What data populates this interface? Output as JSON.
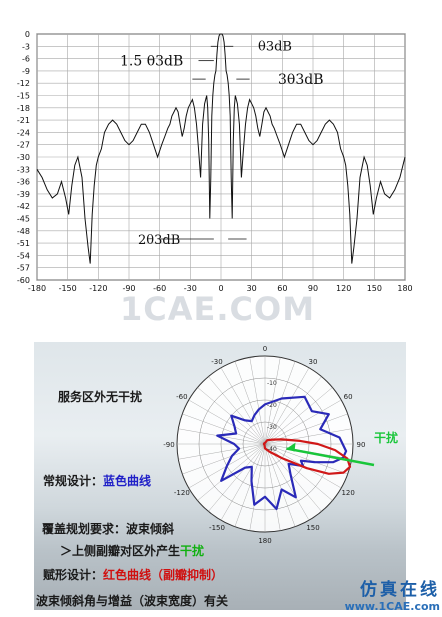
{
  "chart_data": [
    {
      "type": "line",
      "xlim": [
        -180,
        180
      ],
      "ylim": [
        -60,
        0
      ],
      "grid": true,
      "x_ticks": [
        "-180",
        "-150",
        "-120",
        "-90",
        "-60",
        "-30",
        "0",
        "30",
        "60",
        "90",
        "120",
        "150",
        "180"
      ],
      "y_ticks": [
        "0",
        "-3",
        "-6",
        "-9",
        "-12",
        "-15",
        "-18",
        "-21",
        "-24",
        "-27",
        "-30",
        "-33",
        "-36",
        "-39",
        "-42",
        "-45",
        "-48",
        "-51",
        "-54",
        "-57",
        "-60"
      ],
      "series": [
        {
          "x": [
            -180,
            -175,
            -170,
            -165,
            -160,
            -156,
            -152,
            -149,
            -146,
            -143,
            -140,
            -136,
            -133,
            -130,
            -128,
            -126,
            -124,
            -122,
            -120,
            -117,
            -114,
            -110,
            -106,
            -102,
            -98,
            -94,
            -90,
            -86,
            -82,
            -78,
            -74,
            -70,
            -66,
            -62,
            -58,
            -55,
            -52,
            -50,
            -48,
            -46,
            -44,
            -42,
            -40,
            -38,
            -36,
            -34,
            -32,
            -30,
            -28,
            -26,
            -24,
            -22,
            -20,
            -18,
            -16,
            -14,
            -13,
            -12,
            -11,
            -10,
            -9,
            -8,
            -7,
            -6,
            -5,
            -4,
            -3,
            -2,
            -1,
            0,
            1,
            2,
            3,
            4,
            5,
            6,
            7,
            8,
            9,
            10,
            11,
            12,
            13,
            14,
            16,
            18,
            20,
            22,
            24,
            26,
            28,
            30,
            32,
            34,
            36,
            38,
            40,
            42,
            44,
            46,
            48,
            50,
            52,
            55,
            58,
            62,
            66,
            70,
            74,
            78,
            82,
            86,
            90,
            94,
            98,
            102,
            106,
            110,
            114,
            117,
            120,
            122,
            124,
            126,
            128,
            130,
            133,
            136,
            140,
            143,
            146,
            149,
            152,
            156,
            160,
            165,
            170,
            175,
            180
          ],
          "y": [
            -33,
            -35,
            -38,
            -40,
            -39,
            -36,
            -40,
            -44,
            -37,
            -32,
            -30,
            -35,
            -45,
            -52,
            -56,
            -44,
            -37,
            -32,
            -30,
            -28,
            -24,
            -22,
            -21,
            -22,
            -24,
            -26,
            -27,
            -26,
            -24,
            -22,
            -22,
            -24,
            -27,
            -30,
            -27,
            -25,
            -23,
            -22,
            -20,
            -19,
            -18,
            -19,
            -22,
            -25,
            -23,
            -20,
            -18,
            -17,
            -16,
            -18,
            -22,
            -28,
            -35,
            -22,
            -17,
            -15,
            -18,
            -26,
            -45,
            -35,
            -20,
            -15,
            -12,
            -10,
            -9,
            -5,
            -2,
            -0.5,
            0,
            0,
            0,
            -0.5,
            -2,
            -5,
            -9,
            -10,
            -12,
            -15,
            -20,
            -35,
            -45,
            -26,
            -18,
            -15,
            -17,
            -22,
            -35,
            -28,
            -22,
            -18,
            -16,
            -17,
            -18,
            -20,
            -23,
            -25,
            -22,
            -19,
            -18,
            -19,
            -20,
            -22,
            -23,
            -25,
            -27,
            -30,
            -27,
            -24,
            -22,
            -22,
            -24,
            -26,
            -27,
            -26,
            -24,
            -22,
            -21,
            -22,
            -24,
            -28,
            -30,
            -32,
            -37,
            -44,
            -56,
            -52,
            -45,
            -35,
            -30,
            -32,
            -37,
            -44,
            -40,
            -36,
            -39,
            -40,
            -38,
            -35,
            -30
          ]
        }
      ],
      "annotations": {
        "beamwidth_3db": "θ3dB",
        "beamwidth_1_5": "1.5 θ3dB",
        "beamwidth_3": "3θ3dB",
        "beamwidth_2": "2θ3dB"
      }
    },
    {
      "type": "polar",
      "angle_labels": [
        "0",
        "30",
        "60",
        "90",
        "120",
        "150",
        "180",
        "-150",
        "-120",
        "-90",
        "-60",
        "-30"
      ],
      "radial_labels": [
        "-10",
        "-20",
        "-30",
        "-40"
      ],
      "series": [
        {
          "color": "#2a2ab8",
          "angles": [
            0,
            20,
            40,
            55,
            65,
            75,
            85,
            95,
            100,
            105,
            110,
            115,
            120,
            130,
            140,
            150,
            160,
            170,
            180,
            190,
            200,
            210,
            220,
            230,
            240,
            250,
            260,
            270,
            280,
            290,
            300,
            310,
            320,
            330,
            340,
            350
          ],
          "values": [
            -22,
            -18,
            -12,
            -14,
            -8,
            -14,
            -6,
            -3,
            -4,
            -8,
            -16,
            -22,
            -20,
            -26,
            -22,
            -12,
            -18,
            -10,
            -16,
            -12,
            -22,
            -28,
            -26,
            -14,
            -20,
            -24,
            -28,
            -26,
            -18,
            -26,
            -24,
            -20,
            -26,
            -28,
            -26,
            -24
          ]
        },
        {
          "color": "#d01818",
          "angles": [
            0,
            30,
            60,
            75,
            85,
            90,
            95,
            100,
            105,
            110,
            115,
            120,
            130,
            150,
            180,
            210,
            240,
            270,
            300,
            330
          ],
          "values": [
            -40,
            -38,
            -36,
            -32,
            -24,
            -16,
            -8,
            -2,
            0,
            -2,
            -8,
            -18,
            -30,
            -36,
            -38,
            -40,
            -40,
            -40,
            -40,
            -40
          ]
        }
      ],
      "interference_label": "干扰",
      "interference_color": "#19c63a"
    }
  ],
  "captions": {
    "service_area": "服务区外无干扰",
    "conventional_prefix": "常规设计：",
    "conventional_blue": "蓝色曲线",
    "coverage_req": "覆盖规划要求：波束倾斜",
    "upper_sidelobe_prefix": "＞上侧副瓣对区外产生",
    "upper_sidelobe_green": "干扰",
    "shaping_prefix": "赋形设计：",
    "shaping_red": "红色曲线（副瓣抑制）",
    "tilt_gain": "波束倾斜角与增益（波束宽度）有关"
  },
  "watermarks": {
    "top": "1CAE.COM",
    "brand_cn": "仿真在线",
    "brand_url": "www.1CAE.com"
  }
}
